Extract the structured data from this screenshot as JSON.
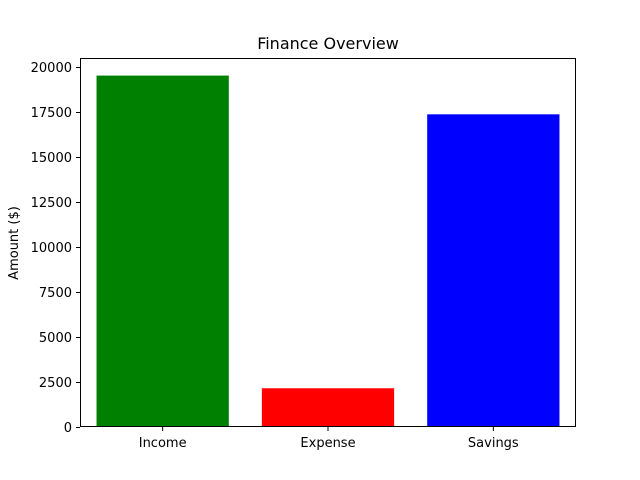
{
  "chart_data": {
    "type": "bar",
    "title": "Finance Overview",
    "xlabel": "",
    "ylabel": "Amount ($)",
    "categories": [
      "Income",
      "Expense",
      "Savings"
    ],
    "values": [
      19500,
      2150,
      17350
    ],
    "colors": [
      "#008000",
      "#ff0000",
      "#0000ff"
    ],
    "ylim": [
      0,
      20475
    ],
    "yticks": [
      0,
      2500,
      5000,
      7500,
      10000,
      12500,
      15000,
      17500,
      20000
    ],
    "ytick_labels": [
      "0",
      "2500",
      "5000",
      "7500",
      "10000",
      "12500",
      "15000",
      "17500",
      "20000"
    ],
    "grid": false,
    "legend": "none"
  }
}
